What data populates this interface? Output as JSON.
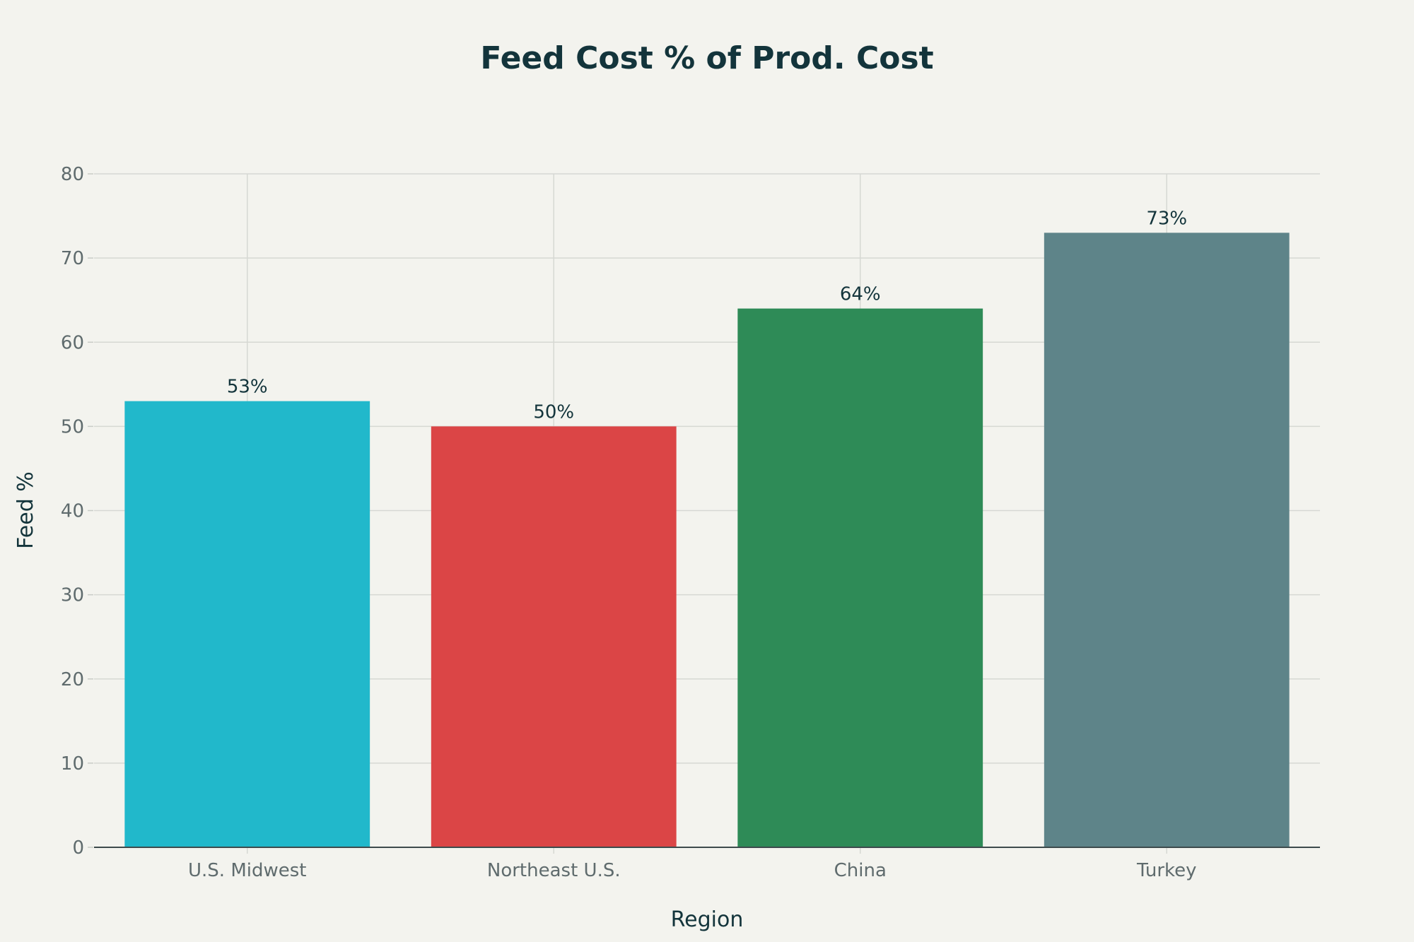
{
  "chart_data": {
    "type": "bar",
    "title": "Feed Cost % of Prod. Cost",
    "xlabel": "Region",
    "ylabel": "Feed %",
    "categories": [
      "U.S. Midwest",
      "Northeast U.S.",
      "China",
      "Turkey"
    ],
    "values": [
      53,
      50,
      64,
      73
    ],
    "data_labels": [
      "53%",
      "50%",
      "64%",
      "73%"
    ],
    "colors": [
      "#21b8cb",
      "#db4546",
      "#2e8b57",
      "#5e8489"
    ],
    "ylim": [
      0,
      80
    ],
    "yticks": [
      0,
      10,
      20,
      30,
      40,
      50,
      60,
      70,
      80
    ],
    "grid": true,
    "legend": "none"
  }
}
